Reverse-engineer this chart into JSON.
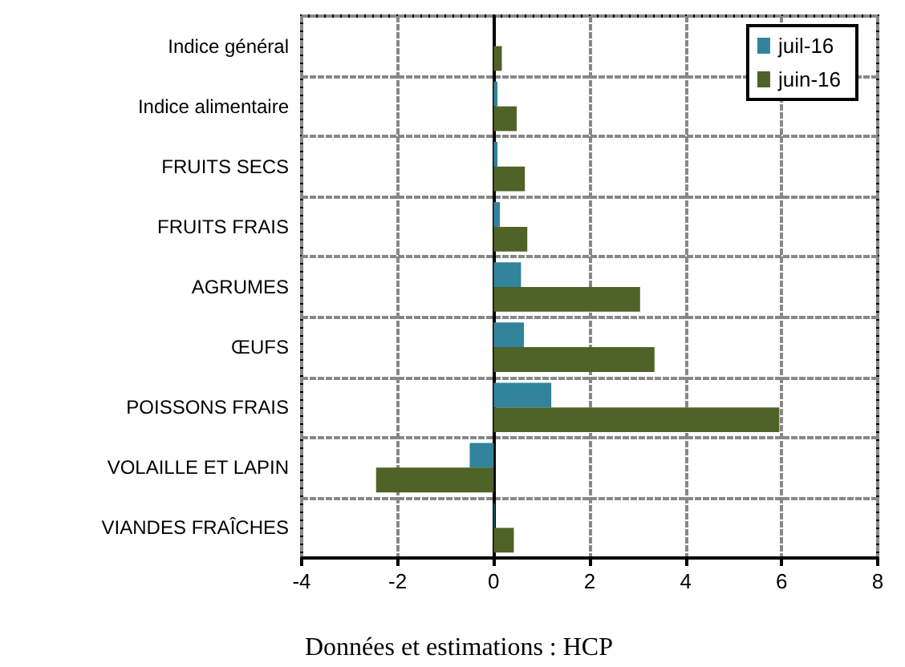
{
  "chart_data": {
    "type": "bar",
    "orientation": "horizontal",
    "categories": [
      "Indice général",
      "Indice alimentaire",
      "FRUITS SECS",
      "FRUITS FRAIS",
      "AGRUMES",
      "ŒUFS",
      "POISSONS FRAIS",
      "VOLAILLE ET LAPIN",
      "VIANDES FRAÎCHES"
    ],
    "series": [
      {
        "name": "juil-16",
        "color": "#31849b",
        "values": [
          0,
          0.08,
          0.08,
          0.13,
          0.57,
          0.63,
          1.2,
          -0.5,
          0.02
        ]
      },
      {
        "name": "juin-16",
        "color": "#4f6228",
        "values": [
          0.17,
          0.48,
          0.65,
          0.7,
          3.05,
          3.35,
          5.95,
          -2.45,
          0.42
        ]
      }
    ],
    "xlim": [
      -4,
      8
    ],
    "xticks": [
      -4,
      -2,
      0,
      2,
      4,
      6,
      8
    ],
    "grid": true,
    "legend": "top right",
    "annotations": [
      "Données et estimations : HCP"
    ]
  }
}
